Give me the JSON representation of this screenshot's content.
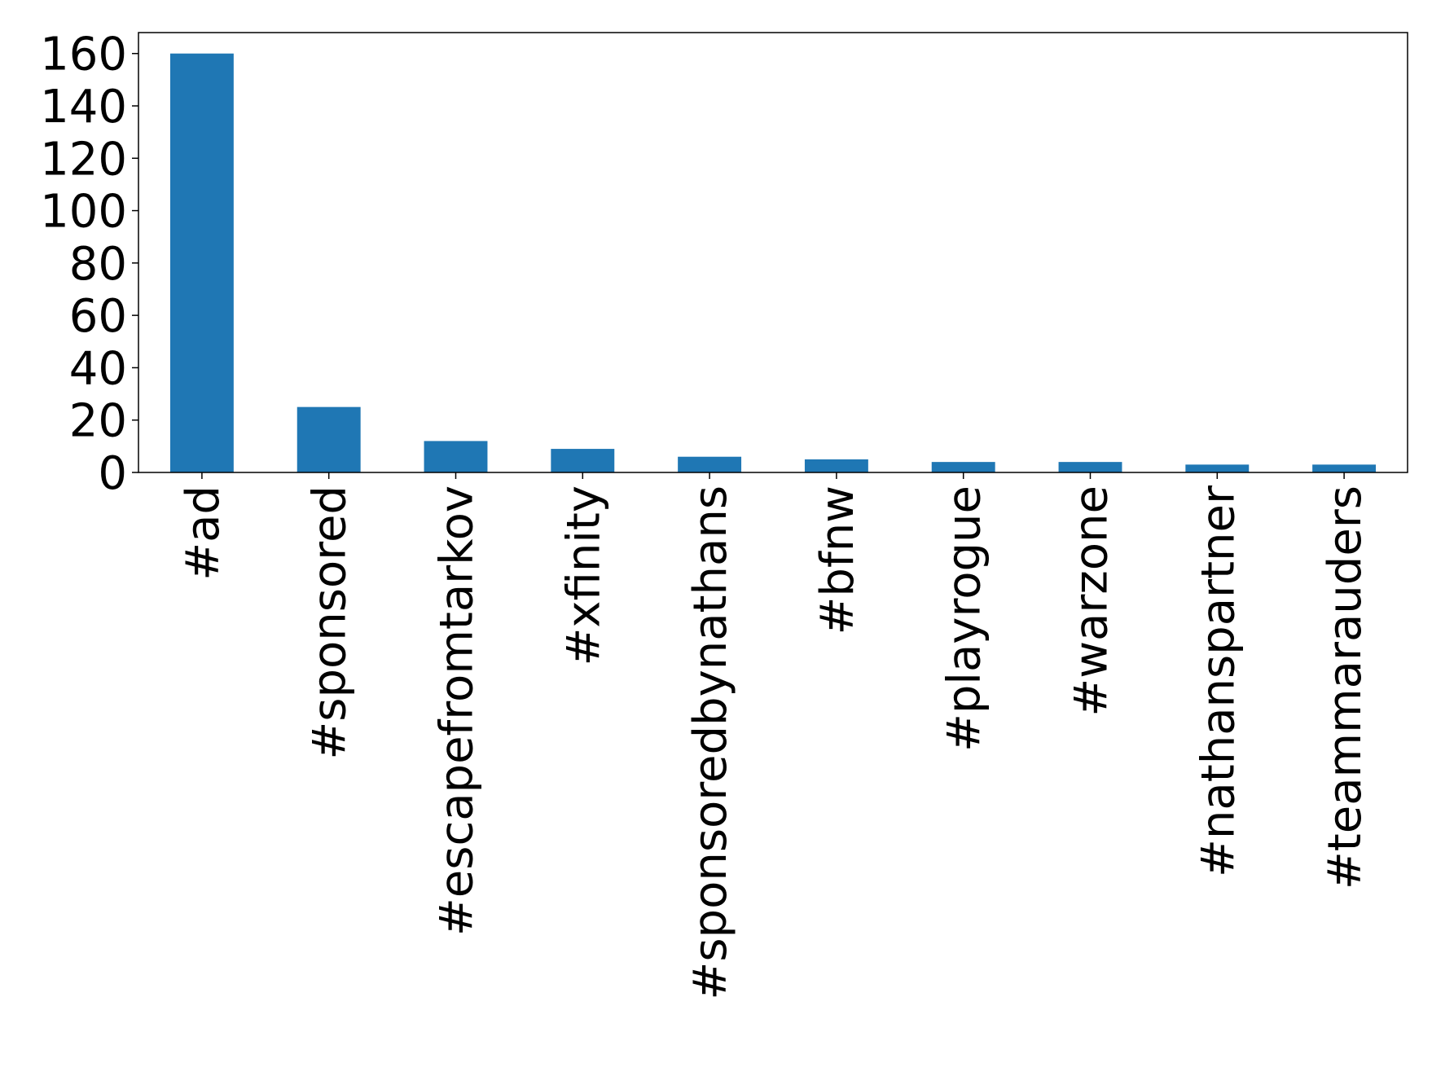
{
  "chart_data": {
    "type": "bar",
    "title": "",
    "xlabel": "",
    "ylabel": "",
    "categories": [
      "#ad",
      "#sponsored",
      "#escapefromtarkov",
      "#xfinity",
      "#sponsoredbynathans",
      "#bfnw",
      "#playrogue",
      "#warzone",
      "#nathanspartner",
      "#teammarauders"
    ],
    "values": [
      160,
      25,
      12,
      9,
      6,
      5,
      4,
      4,
      3,
      3
    ],
    "ylim": [
      0,
      168
    ],
    "yticks": [
      0,
      20,
      40,
      60,
      80,
      100,
      120,
      140,
      160
    ],
    "ytick_labels": [
      "0",
      "20",
      "40",
      "60",
      "80",
      "100",
      "120",
      "140",
      "160"
    ],
    "bar_color": "#1f77b4",
    "grid": false,
    "legend": "none"
  }
}
